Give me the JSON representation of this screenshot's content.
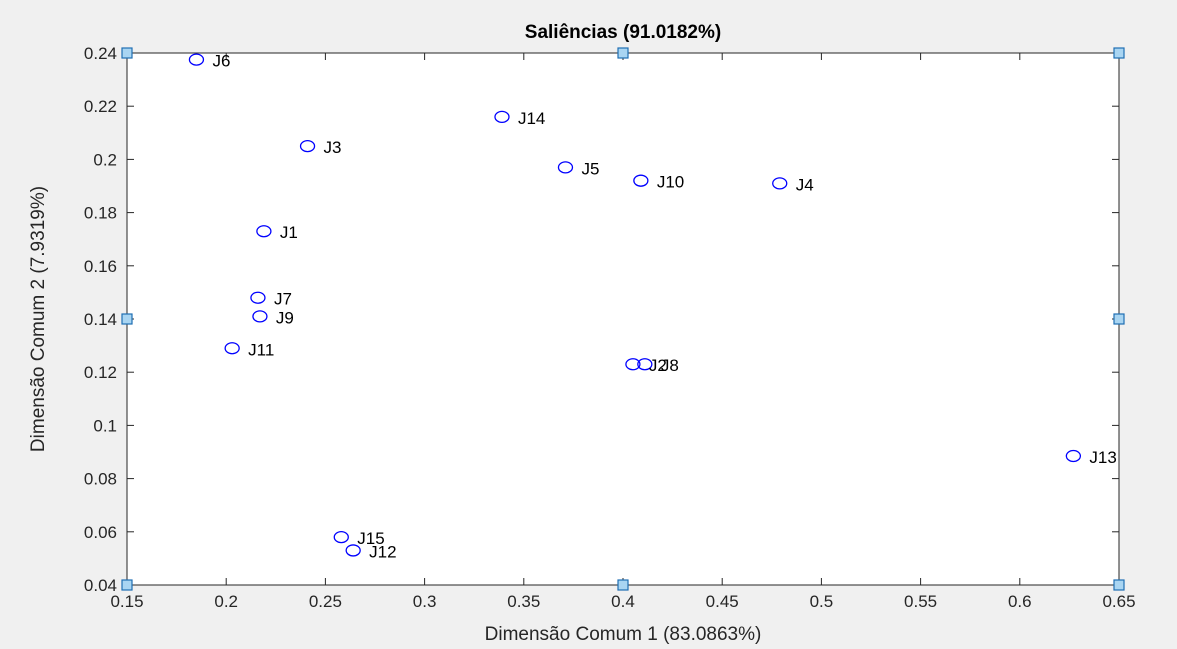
{
  "colors": {
    "figure_background": "#f0f0f0",
    "axes_background": "#ffffff",
    "marker": "#0000ff",
    "handle_fill": "#a9d5f2",
    "handle_stroke": "#1f6fb3"
  },
  "chart_data": {
    "type": "scatter",
    "title": "Saliências (91.0182%)",
    "xlabel": "Dimensão Comum 1 (83.0863%)",
    "ylabel": "Dimensão Comum 2 (7.9319%)",
    "xlim": [
      0.15,
      0.65
    ],
    "ylim": [
      0.04,
      0.24
    ],
    "xticks": [
      "0.15",
      "0.2",
      "0.25",
      "0.3",
      "0.35",
      "0.4",
      "0.45",
      "0.5",
      "0.55",
      "0.6",
      "0.65"
    ],
    "yticks": [
      "0.04",
      "0.06",
      "0.08",
      "0.1",
      "0.12",
      "0.14",
      "0.16",
      "0.18",
      "0.2",
      "0.22",
      "0.24"
    ],
    "grid": false,
    "marker": "open-circle",
    "points": [
      {
        "label": "J6",
        "x": 0.185,
        "y": 0.2375
      },
      {
        "label": "J14",
        "x": 0.339,
        "y": 0.216
      },
      {
        "label": "J3",
        "x": 0.241,
        "y": 0.205
      },
      {
        "label": "J5",
        "x": 0.371,
        "y": 0.197
      },
      {
        "label": "J10",
        "x": 0.409,
        "y": 0.192
      },
      {
        "label": "J4",
        "x": 0.479,
        "y": 0.191
      },
      {
        "label": "J1",
        "x": 0.219,
        "y": 0.173
      },
      {
        "label": "J7",
        "x": 0.216,
        "y": 0.148
      },
      {
        "label": "J9",
        "x": 0.217,
        "y": 0.141
      },
      {
        "label": "J11",
        "x": 0.203,
        "y": 0.129
      },
      {
        "label": "J2",
        "x": 0.405,
        "y": 0.123
      },
      {
        "label": "J8",
        "x": 0.411,
        "y": 0.123
      },
      {
        "label": "J13",
        "x": 0.627,
        "y": 0.0885
      },
      {
        "label": "J15",
        "x": 0.258,
        "y": 0.058
      },
      {
        "label": "J12",
        "x": 0.264,
        "y": 0.053
      }
    ]
  }
}
